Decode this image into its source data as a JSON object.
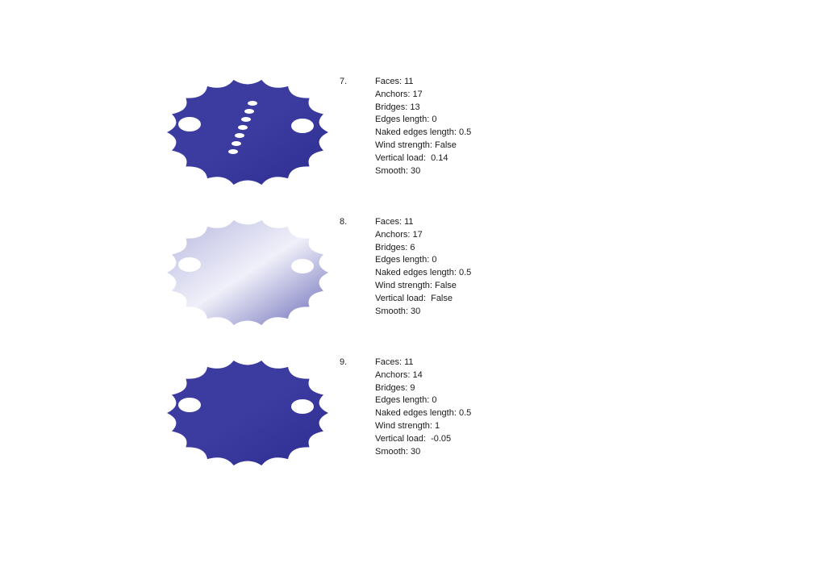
{
  "accent_color": "#3b3ba0",
  "entries": [
    {
      "number": "7.",
      "shape_style": "solid-with-holes",
      "params": [
        "Faces: 11",
        "Anchors: 17",
        "Bridges: 13",
        "Edges length: 0",
        "Naked edges length: 0.5",
        "Wind strength: False",
        "Vertical load:  0.14",
        "Smooth: 30"
      ]
    },
    {
      "number": "8.",
      "shape_style": "light-gradient",
      "params": [
        "Faces: 11",
        "Anchors: 17",
        "Bridges: 6",
        "Edges length: 0",
        "Naked edges length: 0.5",
        "Wind strength: False",
        "Vertical load:  False",
        "Smooth: 30"
      ]
    },
    {
      "number": "9.",
      "shape_style": "solid",
      "params": [
        "Faces: 11",
        "Anchors: 14",
        "Bridges: 9",
        "Edges length: 0",
        "Naked edges length: 0.5",
        "Wind strength: 1",
        "Vertical load:  -0.05",
        "Smooth: 30"
      ]
    }
  ]
}
